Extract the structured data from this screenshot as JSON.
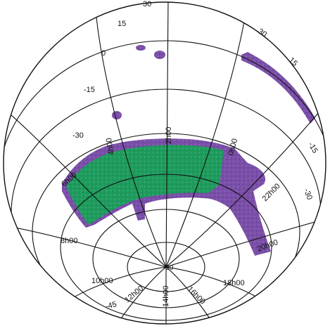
{
  "map": {
    "colors": {
      "outline": "#111111",
      "background": "#ffffff",
      "footprint_purple": "#7a4fa8",
      "footprint_purple_dark": "#5a2f8c",
      "footprint_green": "#1f9b5e",
      "footprint_green_light": "#3fb37a"
    },
    "dec_labels": {
      "d30_top": "30",
      "d15_top": "15",
      "d0_left": "0",
      "dm15_left": "-15",
      "dm30_left": "-30",
      "d30_right": "30",
      "d15_right": "15",
      "dm15_right": "-15",
      "dm30_right": "-30",
      "dm45_bottom": "-45"
    },
    "ra_labels": {
      "ra0": "0h00",
      "ra2": "2h00",
      "ra4": "4h00",
      "ra6": "6h00",
      "ra8": "8h00",
      "ra10": "10h00",
      "ra12": "12h00",
      "ra14": "14h00",
      "ra16": "16h00",
      "ra18": "18h00",
      "ra20": "20h00",
      "ra22": "22h00"
    },
    "pole_label": "-90"
  }
}
